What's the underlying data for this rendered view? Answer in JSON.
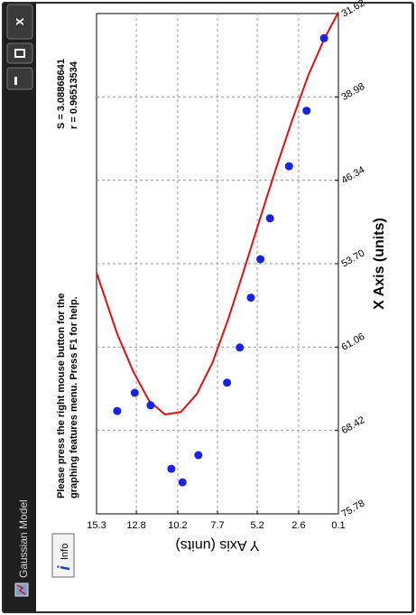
{
  "window": {
    "title": "Gaussian Model",
    "controls": [
      "minimize",
      "maximize",
      "close"
    ]
  },
  "toolbar": {
    "info_label": "Info",
    "info_icon": "info-icon"
  },
  "hint": {
    "line1": "Please press the right mouse button for the",
    "line2": "graphing features menu.  Press F1 for help."
  },
  "stats": {
    "s_text": "S = 3.08868641",
    "r_text": "r = 0.96513534"
  },
  "colors": {
    "frame": "#2b2b2b",
    "curve": "#dd1111",
    "points": "#1a22e6",
    "grid": "#9a9a9a"
  },
  "chart_data": {
    "type": "scatter",
    "xlabel": "X Axis (units)",
    "ylabel": "Y Axis (units)",
    "xlim": [
      0.1,
      15.3
    ],
    "ylim": [
      31.62,
      75.78
    ],
    "x_ticks": [
      "0.1",
      "2.6",
      "5.2",
      "7.7",
      "10.2",
      "12.8",
      "15.3"
    ],
    "y_ticks": [
      "31.62",
      "38.98",
      "46.34",
      "53.70",
      "61.06",
      "68.42",
      "75.78"
    ],
    "grid": true,
    "series": [
      {
        "kind": "points",
        "x": [
          1.0,
          2.1,
          3.2,
          4.4,
          5.0,
          5.6,
          6.3,
          7.1,
          8.9,
          9.9,
          10.6,
          11.9,
          12.9,
          14.0
        ],
        "y": [
          33.8,
          40.2,
          45.1,
          49.7,
          53.3,
          56.7,
          61.1,
          64.2,
          70.6,
          73.0,
          71.8,
          66.2,
          65.1,
          66.7
        ]
      },
      {
        "kind": "fit-curve",
        "x": [
          0.1,
          1.0,
          2.0,
          3.0,
          4.0,
          5.0,
          6.0,
          7.0,
          8.0,
          9.0,
          10.0,
          11.0,
          12.0,
          13.0,
          14.0,
          15.3
        ],
        "y": [
          31.5,
          33.9,
          37.1,
          41.0,
          45.2,
          49.6,
          54.1,
          58.5,
          62.4,
          65.2,
          66.8,
          67.0,
          65.8,
          63.2,
          59.9,
          54.5
        ]
      }
    ]
  }
}
